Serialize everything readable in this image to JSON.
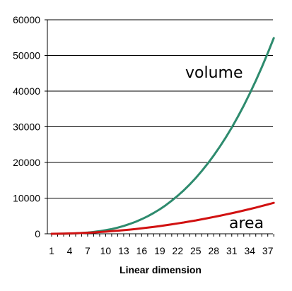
{
  "chart_data": {
    "type": "line",
    "title": "",
    "xlabel": "Linear dimension",
    "ylabel": "",
    "xlim": [
      1,
      38
    ],
    "ylim": [
      0,
      60000
    ],
    "x_ticks": [
      1,
      4,
      7,
      10,
      13,
      16,
      19,
      22,
      25,
      28,
      31,
      34,
      37
    ],
    "y_ticks": [
      0,
      10000,
      20000,
      30000,
      40000,
      50000,
      60000
    ],
    "grid": "horizontal",
    "legend": "none",
    "x": [
      1,
      2,
      3,
      4,
      5,
      6,
      7,
      8,
      9,
      10,
      11,
      12,
      13,
      14,
      15,
      16,
      17,
      18,
      19,
      20,
      21,
      22,
      23,
      24,
      25,
      26,
      27,
      28,
      29,
      30,
      31,
      32,
      33,
      34,
      35,
      36,
      37,
      38
    ],
    "series": [
      {
        "name": "volume",
        "color": "#2e8b6e",
        "values": [
          1,
          8,
          27,
          64,
          125,
          216,
          343,
          512,
          729,
          1000,
          1331,
          1728,
          2197,
          2744,
          3375,
          4096,
          4913,
          5832,
          6859,
          8000,
          9261,
          10648,
          12167,
          13824,
          15625,
          17576,
          19683,
          21952,
          24389,
          27000,
          29791,
          32768,
          35937,
          39304,
          42875,
          46656,
          50653,
          54872
        ]
      },
      {
        "name": "area",
        "color": "#d11111",
        "values": [
          6,
          24,
          54,
          96,
          150,
          216,
          294,
          384,
          486,
          600,
          726,
          864,
          1014,
          1176,
          1350,
          1536,
          1734,
          1944,
          2166,
          2400,
          2646,
          2904,
          3174,
          3456,
          3750,
          4056,
          4374,
          4704,
          5046,
          5400,
          5766,
          6144,
          6534,
          6936,
          7350,
          7776,
          8214,
          8664
        ]
      }
    ]
  }
}
